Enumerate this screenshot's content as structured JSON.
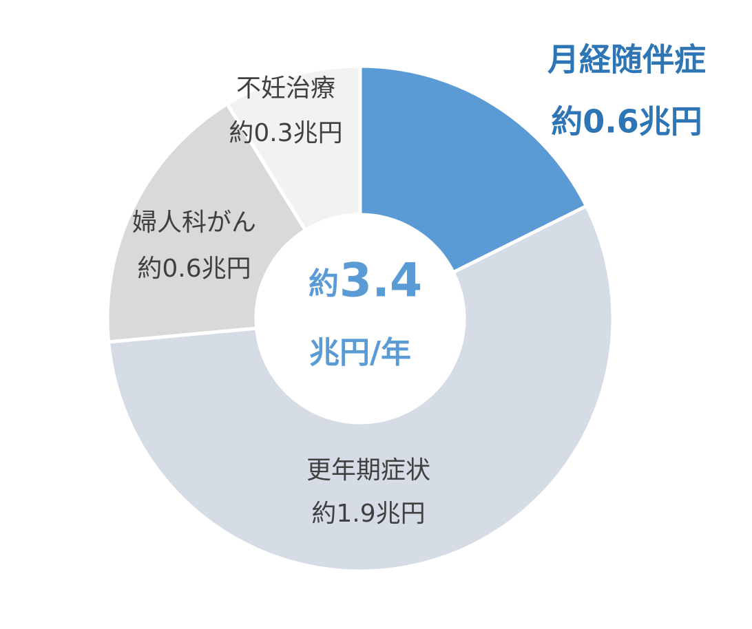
{
  "chart_data": {
    "type": "donut",
    "categories": [
      "月経随伴症",
      "更年期症状",
      "婦人科がん",
      "不妊治療"
    ],
    "values": [
      0.6,
      1.9,
      0.6,
      0.3
    ],
    "value_labels": [
      "約0.6兆円",
      "約1.9兆円",
      "約0.6兆円",
      "約0.3兆円"
    ],
    "colors": [
      "#5b9bd5",
      "#d6dce5",
      "#d9d9d9",
      "#f2f2f2"
    ],
    "highlight_color": "#2e75b6",
    "center_label": {
      "prefix": "約",
      "total": "3.4",
      "unit": "兆円/年"
    }
  }
}
